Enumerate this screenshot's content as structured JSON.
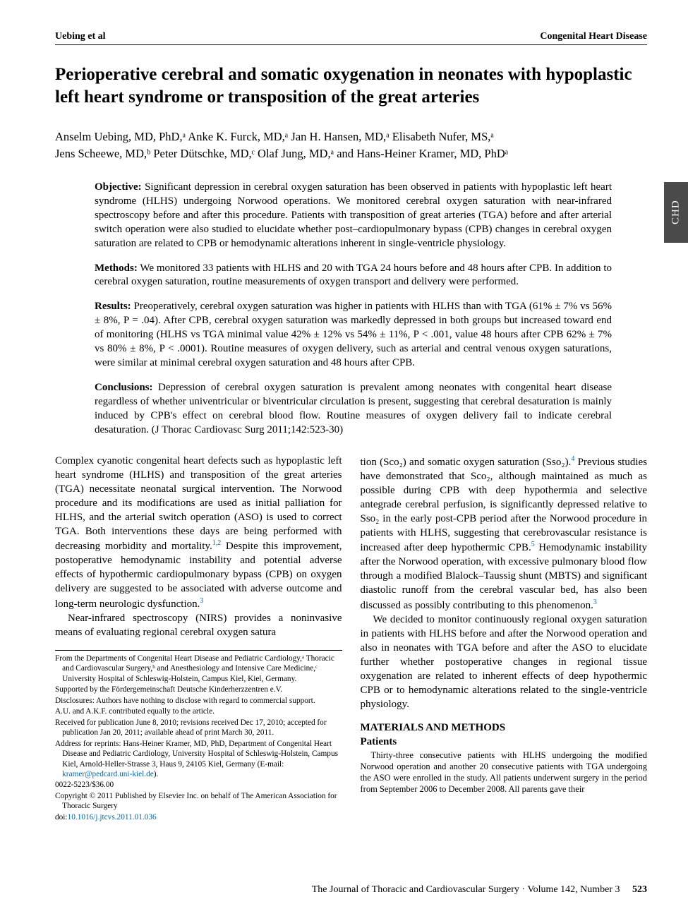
{
  "running_head": {
    "left": "Uebing et al",
    "right": "Congenital Heart Disease"
  },
  "side_tab": "CHD",
  "title": "Perioperative cerebral and somatic oxygenation in neonates with hypoplastic left heart syndrome or transposition of the great arteries",
  "authors_line1": "Anselm Uebing, MD, PhD,ᵃ Anke K. Furck, MD,ᵃ Jan H. Hansen, MD,ᵃ Elisabeth Nufer, MS,ᵃ",
  "authors_line2": "Jens Scheewe, MD,ᵇ Peter Dütschke, MD,ᶜ Olaf Jung, MD,ᵃ and Hans-Heiner Kramer, MD, PhDᵃ",
  "abstract": {
    "objective": {
      "label": "Objective:",
      "text": " Significant depression in cerebral oxygen saturation has been observed in patients with hypoplastic left heart syndrome (HLHS) undergoing Norwood operations. We monitored cerebral oxygen saturation with near-infrared spectroscopy before and after this procedure. Patients with transposition of great arteries (TGA) before and after arterial switch operation were also studied to elucidate whether post–cardiopulmonary bypass (CPB) changes in cerebral oxygen saturation are related to CPB or hemodynamic alterations inherent in single-ventricle physiology."
    },
    "methods": {
      "label": "Methods:",
      "text": " We monitored 33 patients with HLHS and 20 with TGA 24 hours before and 48 hours after CPB. In addition to cerebral oxygen saturation, routine measurements of oxygen transport and delivery were performed."
    },
    "results": {
      "label": "Results:",
      "text": " Preoperatively, cerebral oxygen saturation was higher in patients with HLHS than with TGA (61% ± 7% vs 56% ± 8%, P = .04). After CPB, cerebral oxygen saturation was markedly depressed in both groups but increased toward end of monitoring (HLHS vs TGA minimal value 42% ± 12% vs 54% ± 11%, P < .001, value 48 hours after CPB 62% ± 7% vs 80% ± 8%, P < .0001). Routine measures of oxygen delivery, such as arterial and central venous oxygen saturations, were similar at minimal cerebral oxygen saturation and 48 hours after CPB."
    },
    "conclusions": {
      "label": "Conclusions:",
      "text": " Depression of cerebral oxygen saturation is prevalent among neonates with congenital heart disease regardless of whether univentricular or biventricular circulation is present, suggesting that cerebral desaturation is mainly induced by CPB's effect on cerebral blood flow. Routine measures of oxygen delivery fail to indicate cerebral desaturation. (J Thorac Cardiovasc Surg 2011;142:523-30)"
    }
  },
  "body": {
    "p1a": "Complex cyanotic congenital heart defects such as hypoplastic left heart syndrome (HLHS) and transposition of the great arteries (TGA) necessitate neonatal surgical intervention. The Norwood procedure and its modifications are used as initial palliation for HLHS, and the arterial switch operation (ASO) is used to correct TGA. Both interventions these days are being performed with decreasing morbidity and mortality.",
    "p1b": " Despite this improvement, postoperative hemodynamic instability and potential adverse effects of hypothermic cardiopulmonary bypass (CPB) on oxygen delivery are suggested to be associated with adverse outcome and long-term neurologic dysfunction.",
    "p2_lead": "Near-infrared spectroscopy (NIRS) provides a noninvasive means of evaluating regional cerebral oxygen satura",
    "p2_cont_a": "tion (Sco₂) and somatic oxygen saturation (Sso₂).",
    "p2_cont_b": " Previous studies have demonstrated that Sco₂, although maintained as much as possible during CPB with deep hypothermia and selective antegrade cerebral perfusion, is significantly depressed relative to Sso₂ in the early post-CPB period after the Norwood procedure in patients with HLHS, suggesting that cerebrovascular resistance is increased after deep hypothermic CPB.",
    "p2_cont_c": " Hemodynamic instability after the Norwood operation, with excessive pulmonary blood flow through a modified Blalock–Taussig shunt (MBTS) and significant diastolic runoff from the cerebral vascular bed, has also been discussed as possibly contributing to this phenomenon.",
    "p3": "We decided to monitor continuously regional oxygen saturation in patients with HLHS before and after the Norwood operation and also in neonates with TGA before and after the ASO to elucidate further whether postoperative changes in regional tissue oxygenation are related to inherent effects of deep hypothermic CPB or to hemodynamic alterations related to the single-ventricle physiology.",
    "materials_heading": "MATERIALS AND METHODS",
    "patients_heading": "Patients",
    "patients_text": "Thirty-three consecutive patients with HLHS undergoing the modified Norwood operation and another 20 consecutive patients with TGA undergoing the ASO were enrolled in the study. All patients underwent surgery in the period from September 2006 to December 2008. All parents gave their"
  },
  "affil": {
    "l1": "From the Departments of Congenital Heart Disease and Pediatric Cardiology,ᵃ Thoracic and Cardiovascular Surgery,ᵇ and Anesthesiology and Intensive Care Medicine,ᶜ University Hospital of Schleswig-Holstein, Campus Kiel, Kiel, Germany.",
    "l2": "Supported by the Fördergemeinschaft Deutsche Kinderherzzentren e.V.",
    "l3": "Disclosures: Authors have nothing to disclose with regard to commercial support.",
    "l4": "A.U. and A.K.F. contributed equally to the article.",
    "l5": "Received for publication June 8, 2010; revisions received Dec 17, 2010; accepted for publication Jan 20, 2011; available ahead of print March 30, 2011.",
    "l6a": "Address for reprints: Hans-Heiner Kramer, MD, PhD, Department of Congenital Heart Disease and Pediatric Cardiology, University Hospital of Schleswig-Holstein, Campus Kiel, Arnold-Heller-Strasse 3, Haus 9, 24105 Kiel, Germany (E-mail: ",
    "l6_email": "kramer@pedcard.uni-kiel.de",
    "l6b": ").",
    "l7": "0022-5223/$36.00",
    "l8": "Copyright © 2011 Published by Elsevier Inc. on behalf of The American Association for Thoracic Surgery",
    "l9a": "doi:",
    "l9_link": "10.1016/j.jtcvs.2011.01.036"
  },
  "refs": {
    "r12": "1,2",
    "r3": "3",
    "r4": "4",
    "r5": "5",
    "r3b": "3"
  },
  "footer": {
    "journal": "The Journal of Thoracic and Cardiovascular Surgery · Volume 142, Number 3",
    "page": "523"
  }
}
